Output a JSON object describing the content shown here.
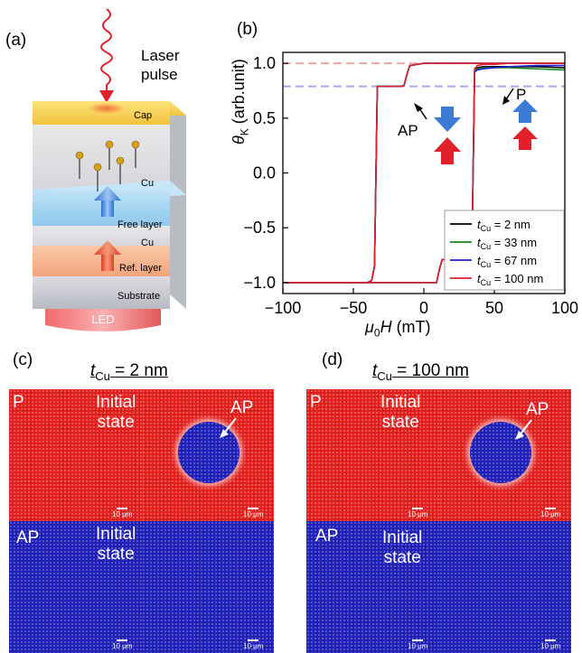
{
  "panels": {
    "a": "(a)",
    "b": "(b)",
    "c": "(c)",
    "d": "(d)"
  },
  "diagram": {
    "laser_label_1": "Laser",
    "laser_label_2": "pulse",
    "layers": [
      "Cap",
      "Cu",
      "Free layer",
      "Cu",
      "Ref. layer",
      "Substrate"
    ],
    "led_label": "LED"
  },
  "chart_data": {
    "type": "line",
    "xlabel": "μ0H (mT)",
    "ylabel": "θK (arb.unit)",
    "xlim": [
      -100,
      100
    ],
    "ylim": [
      -1.1,
      1.1
    ],
    "xticks": [
      -100,
      -50,
      0,
      50,
      100
    ],
    "xtick_labels": [
      "−100",
      "−50",
      "0",
      "50",
      "100"
    ],
    "yticks": [
      -1.0,
      -0.5,
      0.0,
      0.5,
      1.0
    ],
    "ytick_labels": [
      "−1.0",
      "−0.5",
      "0.0",
      "0.5",
      "1.0"
    ],
    "reference_lines": [
      {
        "y": 1.0,
        "color": "#f4a3a3",
        "style": "dashed"
      },
      {
        "y": 0.79,
        "color": "#a3a8f4",
        "style": "dashed"
      }
    ],
    "annotations": [
      "AP",
      "P"
    ],
    "legend_position": "lower-right",
    "series": [
      {
        "name": "tCu = 2 nm",
        "color": "#000000",
        "up_x": [
          -100,
          9,
          11,
          13,
          15,
          34,
          36,
          38,
          42,
          50,
          60,
          80,
          100
        ],
        "up_y": [
          -1.0,
          -1.0,
          -0.88,
          -0.79,
          -0.79,
          -0.79,
          0.93,
          0.96,
          0.97,
          0.97,
          0.97,
          0.97,
          0.96
        ],
        "down_x": [
          100,
          0,
          -10,
          -12,
          -14,
          -16,
          -33,
          -35,
          -37,
          -40,
          -60,
          -100
        ],
        "down_y": [
          1.0,
          1.0,
          0.98,
          0.9,
          0.8,
          0.79,
          0.79,
          -0.85,
          -0.98,
          -1.0,
          -1.0,
          -1.0
        ]
      },
      {
        "name": "tCu = 33 nm",
        "color": "#1a8a1a",
        "up_x": [
          -100,
          9,
          11,
          13,
          15,
          34,
          36,
          38,
          42,
          50,
          60,
          80,
          100
        ],
        "up_y": [
          -1.0,
          -1.0,
          -0.88,
          -0.79,
          -0.79,
          -0.79,
          0.93,
          0.95,
          0.96,
          0.96,
          0.96,
          0.95,
          0.94
        ],
        "down_x": [
          100,
          0,
          -10,
          -12,
          -14,
          -16,
          -33,
          -35,
          -37,
          -40,
          -60,
          -100
        ],
        "down_y": [
          1.0,
          1.0,
          0.98,
          0.9,
          0.8,
          0.79,
          0.79,
          -0.85,
          -0.98,
          -1.0,
          -1.0,
          -1.0
        ]
      },
      {
        "name": "tCu = 67 nm",
        "color": "#1f1fd6",
        "up_x": [
          -100,
          9,
          11,
          13,
          15,
          34,
          36,
          38,
          42,
          50,
          60,
          80,
          100
        ],
        "up_y": [
          -1.0,
          -1.0,
          -0.88,
          -0.79,
          -0.79,
          -0.79,
          0.92,
          0.94,
          0.95,
          0.96,
          0.97,
          0.98,
          0.98
        ],
        "down_x": [
          100,
          0,
          -10,
          -12,
          -14,
          -16,
          -33,
          -35,
          -37,
          -40,
          -60,
          -100
        ],
        "down_y": [
          1.0,
          1.0,
          0.98,
          0.9,
          0.8,
          0.79,
          0.79,
          -0.85,
          -0.98,
          -1.0,
          -1.0,
          -1.0
        ]
      },
      {
        "name": "tCu = 100 nm",
        "color": "#e0202a",
        "up_x": [
          -100,
          9,
          11,
          13,
          15,
          34,
          36,
          38,
          42,
          50,
          60,
          80,
          100
        ],
        "up_y": [
          -1.0,
          -1.0,
          -0.88,
          -0.79,
          -0.79,
          -0.79,
          0.95,
          0.98,
          0.99,
          0.99,
          1.0,
          1.0,
          1.0
        ],
        "down_x": [
          100,
          0,
          -10,
          -12,
          -14,
          -16,
          -33,
          -35,
          -37,
          -40,
          -60,
          -100
        ],
        "down_y": [
          1.0,
          1.0,
          0.98,
          0.9,
          0.8,
          0.79,
          0.79,
          -0.85,
          -0.98,
          -1.0,
          -1.0,
          -1.0
        ]
      }
    ]
  },
  "legend": [
    {
      "sym": "t",
      "sub": "Cu",
      "rest": " = 2 nm"
    },
    {
      "sym": "t",
      "sub": "Cu",
      "rest": " = 33 nm"
    },
    {
      "sym": "t",
      "sub": "Cu",
      "rest": " = 67 nm"
    },
    {
      "sym": "t",
      "sub": "Cu",
      "rest": " = 100 nm"
    }
  ],
  "images": {
    "c_title": {
      "sym": "t",
      "sub": "Cu",
      "rest": " = 2 nm"
    },
    "d_title": {
      "sym": "t",
      "sub": "Cu",
      "rest": " = 100 nm"
    },
    "P_label": "P",
    "AP_label": "AP",
    "initial_1": "Initial",
    "initial_2": "state",
    "scalebar": "10 μm",
    "colors": {
      "red": "#e3201b",
      "blue": "#1c1fb8"
    }
  }
}
